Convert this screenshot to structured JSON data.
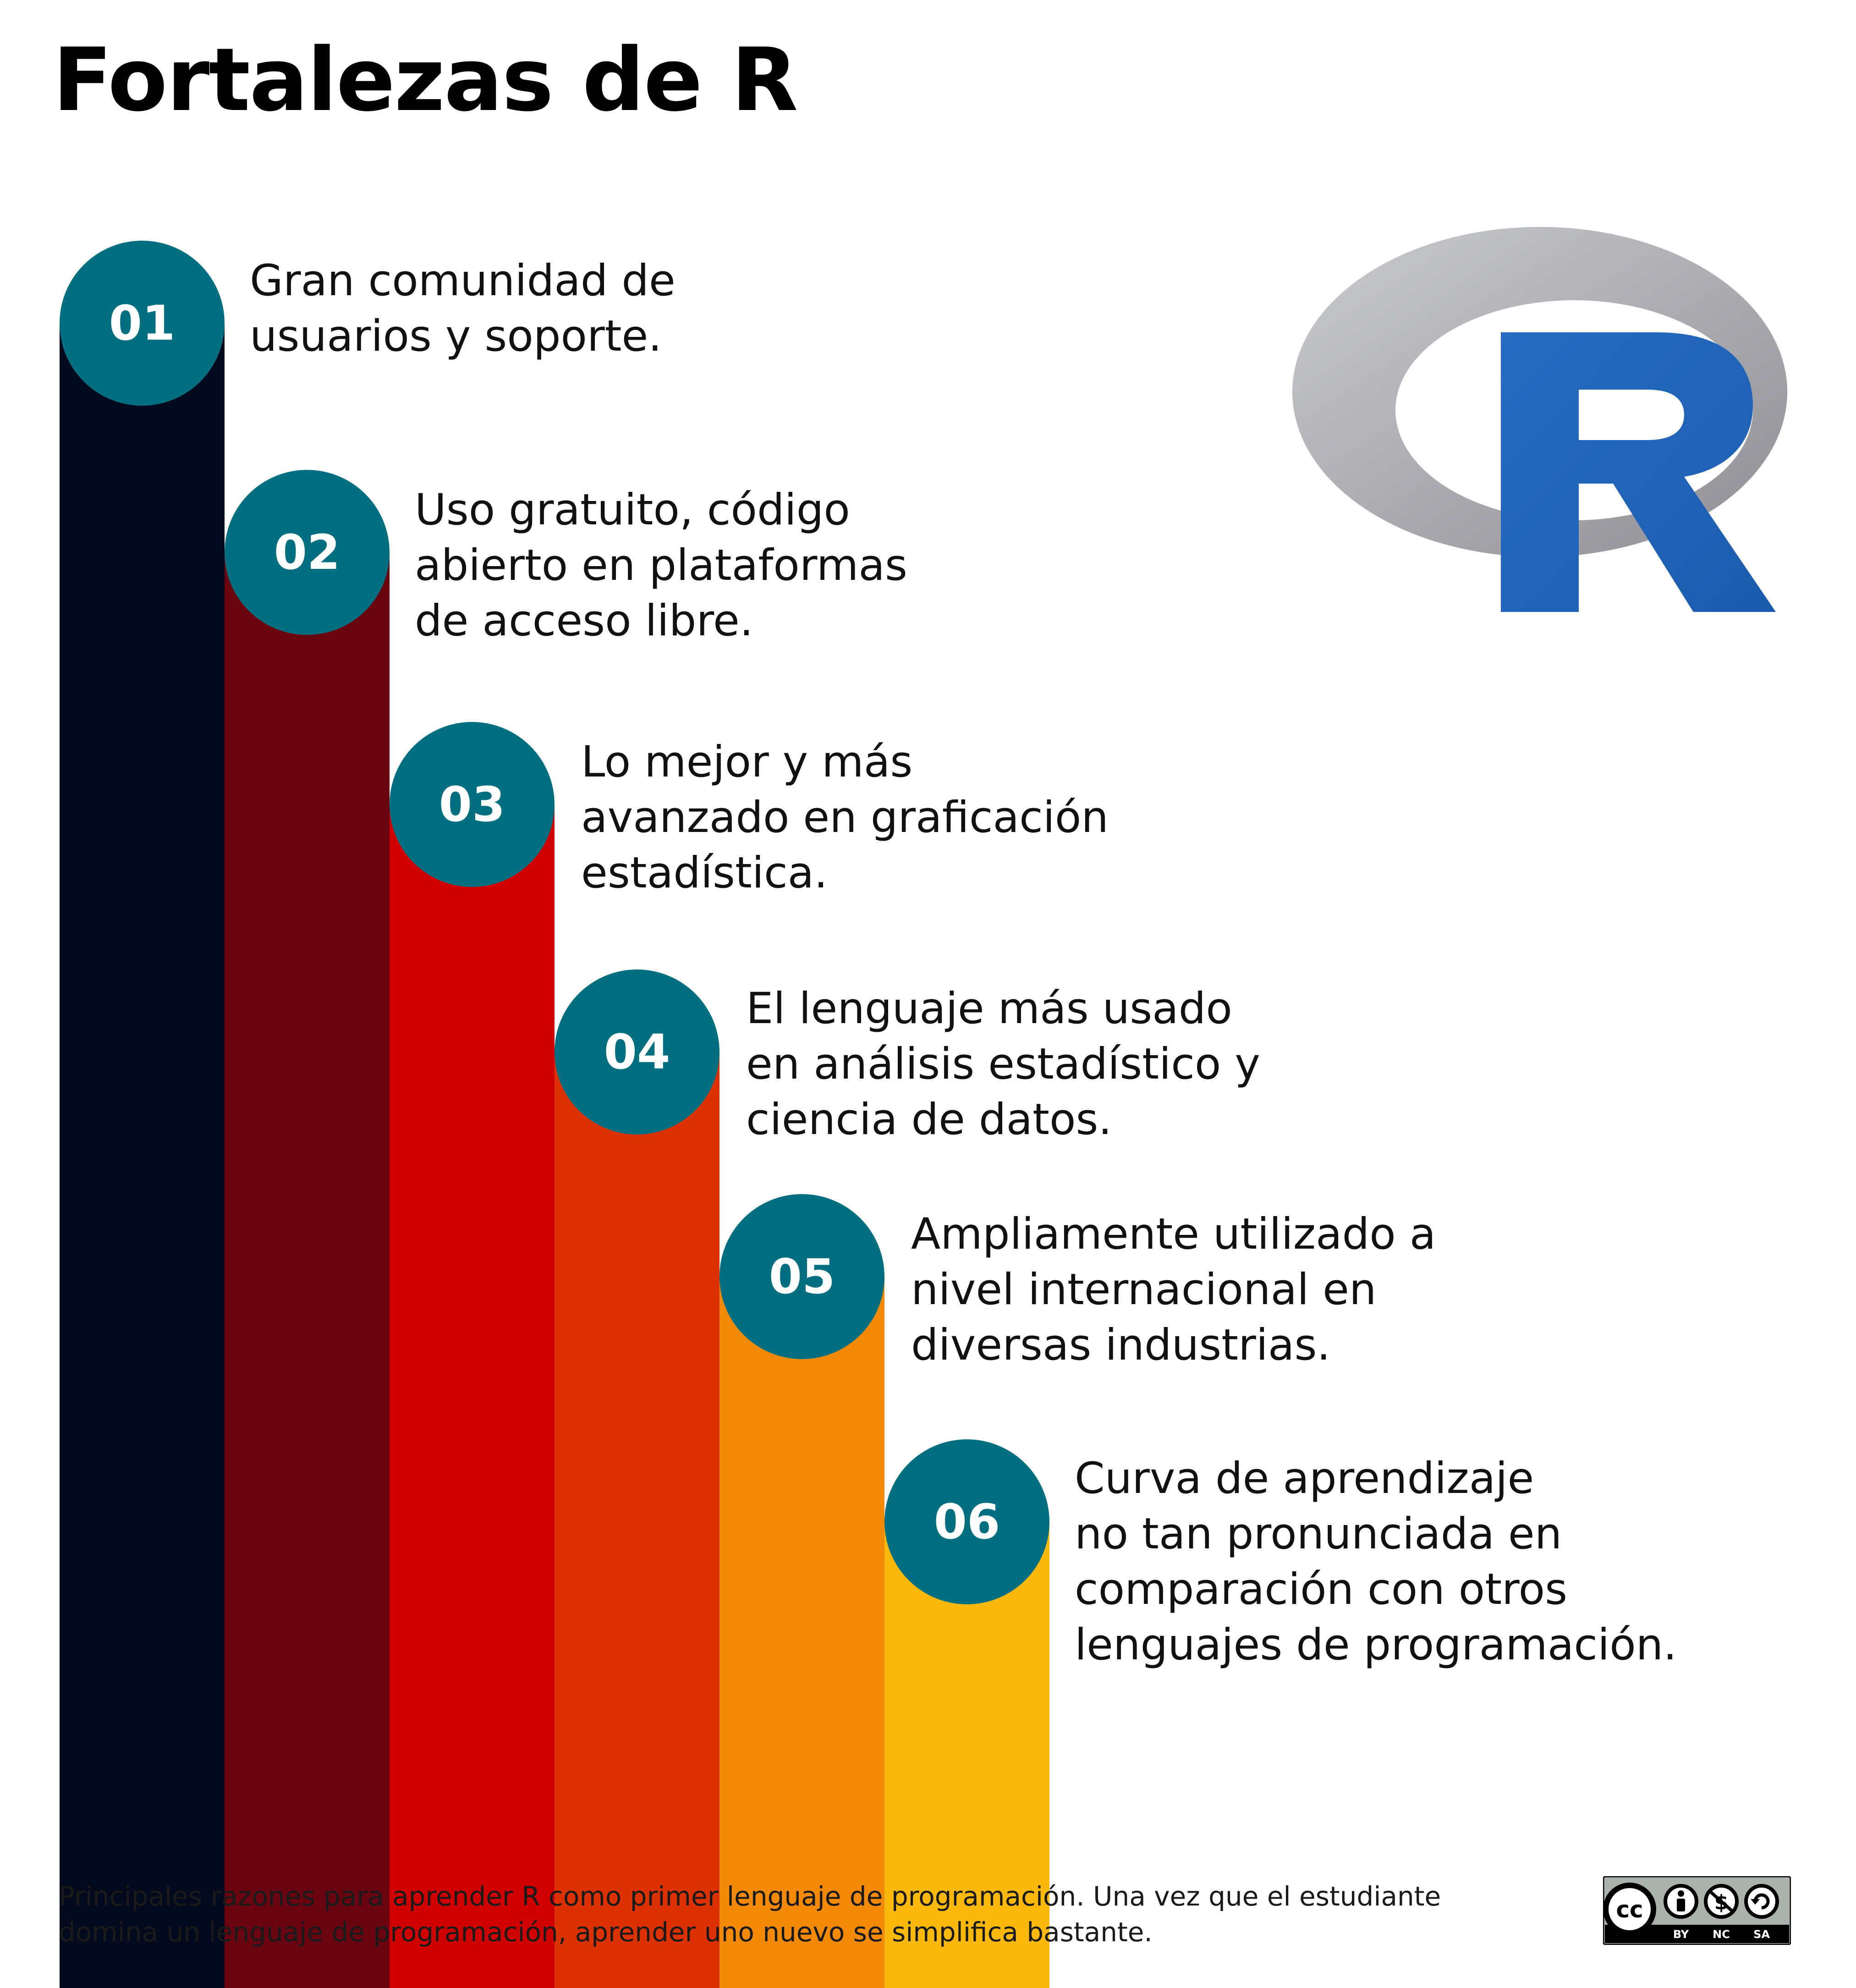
{
  "title": "Fortalezas de R",
  "colors": {
    "badge": "#016F80",
    "bars": [
      "#030A1E",
      "#680511",
      "#CE0000",
      "#DC3201",
      "#F28A07",
      "#FCB90B"
    ],
    "logo_blue": "#2165B8",
    "logo_ring": "#A9A9AE"
  },
  "items": [
    {
      "number": "01",
      "lines": [
        "Gran comunidad de",
        "usuarios y soporte."
      ]
    },
    {
      "number": "02",
      "lines": [
        "Uso gratuito, código",
        "abierto en plataformas",
        "de acceso libre."
      ]
    },
    {
      "number": "03",
      "lines": [
        "Lo mejor y más",
        "avanzado en graficación",
        "estadística."
      ]
    },
    {
      "number": "04",
      "lines": [
        "El lenguaje más usado",
        "en análisis estadístico y",
        "ciencia de datos."
      ]
    },
    {
      "number": "05",
      "lines": [
        "Ampliamente utilizado a",
        "nivel internacional en",
        "diversas industrias."
      ]
    },
    {
      "number": "06",
      "lines": [
        "Curva de aprendizaje",
        "no tan pronunciada en",
        "comparación con otros",
        "lenguajes de programación."
      ]
    }
  ],
  "caption": [
    "Principales razones para aprender R como primer lenguaje de programación. Una vez que el estudiante",
    "domina un lenguaje de programación, aprender uno nuevo se simplifica bastante."
  ],
  "logo": {
    "letter": "R"
  },
  "license": {
    "cc": "cc",
    "labels": [
      "BY",
      "NC",
      "SA"
    ],
    "icons": [
      "cc-icon",
      "attribution-icon",
      "noncommercial-icon",
      "sharealike-icon"
    ]
  }
}
